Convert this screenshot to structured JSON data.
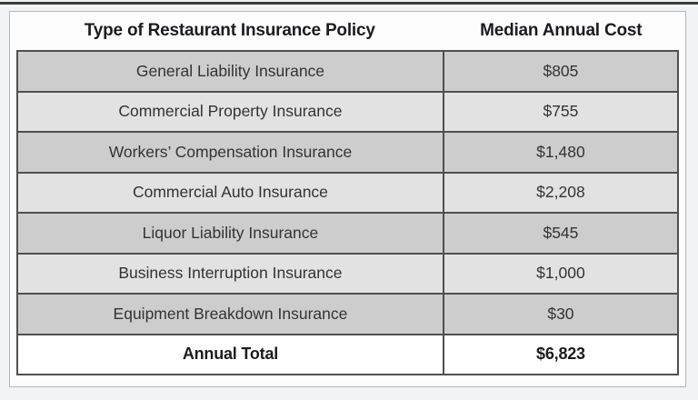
{
  "table": {
    "columns": [
      {
        "label": "Type of Restaurant Insurance Policy"
      },
      {
        "label": "Median Annual Cost"
      }
    ],
    "rows": [
      {
        "policy": "General Liability Insurance",
        "cost": "$805"
      },
      {
        "policy": "Commercial Property Insurance",
        "cost": "$755"
      },
      {
        "policy": "Workers’ Compensation Insurance",
        "cost": "$1,480"
      },
      {
        "policy": "Commercial Auto Insurance",
        "cost": "$2,208"
      },
      {
        "policy": "Liquor Liability Insurance",
        "cost": "$545"
      },
      {
        "policy": "Business Interruption Insurance",
        "cost": "$1,000"
      },
      {
        "policy": "Equipment Breakdown Insurance",
        "cost": "$30"
      }
    ],
    "total": {
      "label": "Annual Total",
      "cost": "$6,823"
    }
  },
  "chart_data": {
    "type": "table",
    "title": "",
    "columns": [
      "Type of Restaurant Insurance Policy",
      "Median Annual Cost"
    ],
    "rows": [
      [
        "General Liability Insurance",
        805
      ],
      [
        "Commercial Property Insurance",
        755
      ],
      [
        "Workers’ Compensation Insurance",
        1480
      ],
      [
        "Commercial Auto Insurance",
        2208
      ],
      [
        "Liquor Liability Insurance",
        545
      ],
      [
        "Business Interruption Insurance",
        1000
      ],
      [
        "Equipment Breakdown Insurance",
        30
      ]
    ],
    "total_row": [
      "Annual Total",
      6823
    ],
    "currency": "USD",
    "layout": "alternating-gray-rows, bold header and total, centered cells"
  },
  "colors": {
    "page_bg": "#f2f3f5",
    "top_rule": "#3c3c3c",
    "card_bg": "#fdfdfe",
    "card_border": "#b5b5b5",
    "table_border": "#4f4f4f",
    "row_dark": "#cdcdcd",
    "row_light": "#e2e2e2",
    "row_text": "#333333",
    "header_text": "#1c1c1e"
  }
}
